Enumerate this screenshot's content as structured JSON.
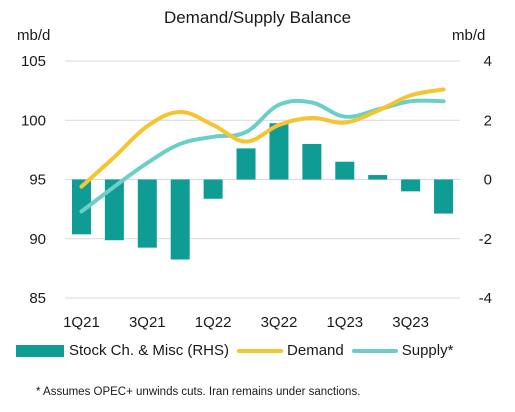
{
  "chart_data": {
    "type": "bar+line",
    "title": "Demand/Supply Balance",
    "ylabel_left": "mb/d",
    "ylabel_right": "mb/d",
    "ylim_left": [
      85,
      105
    ],
    "ylim_right": [
      -4,
      4
    ],
    "yticks_left": [
      "85",
      "90",
      "95",
      "100",
      "105"
    ],
    "yticks_right": [
      "-4",
      "-2",
      "0",
      "2",
      "4"
    ],
    "categories": [
      "1Q21",
      "2Q21",
      "3Q21",
      "4Q21",
      "1Q22",
      "2Q22",
      "3Q22",
      "4Q22",
      "1Q23",
      "2Q23",
      "3Q23",
      "4Q23"
    ],
    "x_tick_labels": [
      "1Q21",
      "",
      "3Q21",
      "",
      "1Q22",
      "",
      "3Q22",
      "",
      "1Q23",
      "",
      "3Q23",
      ""
    ],
    "series": [
      {
        "name": "Stock Ch. & Misc (RHS)",
        "type": "bar",
        "axis": "right",
        "values": [
          -1.85,
          -2.05,
          -2.3,
          -2.7,
          -0.65,
          1.05,
          1.9,
          1.2,
          0.6,
          0.15,
          -0.4,
          -1.15
        ]
      },
      {
        "name": "Demand",
        "type": "line",
        "axis": "left",
        "values": [
          94.4,
          96.9,
          99.5,
          100.7,
          99.6,
          98.2,
          99.6,
          100.2,
          99.8,
          100.8,
          102.1,
          102.6
        ]
      },
      {
        "name": "Supply*",
        "type": "line",
        "axis": "left",
        "values": [
          92.3,
          94.4,
          96.4,
          98.0,
          98.6,
          99.0,
          101.3,
          101.5,
          100.3,
          100.9,
          101.6,
          101.6
        ]
      }
    ],
    "colors": {
      "bar": "#0e9c94",
      "demand": "#f6c431",
      "supply": "#6bcfc8",
      "grid": "#d9d9d9"
    },
    "grid": true,
    "legend_position": "bottom",
    "footnote": "* Assumes OPEC+ unwinds cuts. Iran remains under sanctions."
  }
}
